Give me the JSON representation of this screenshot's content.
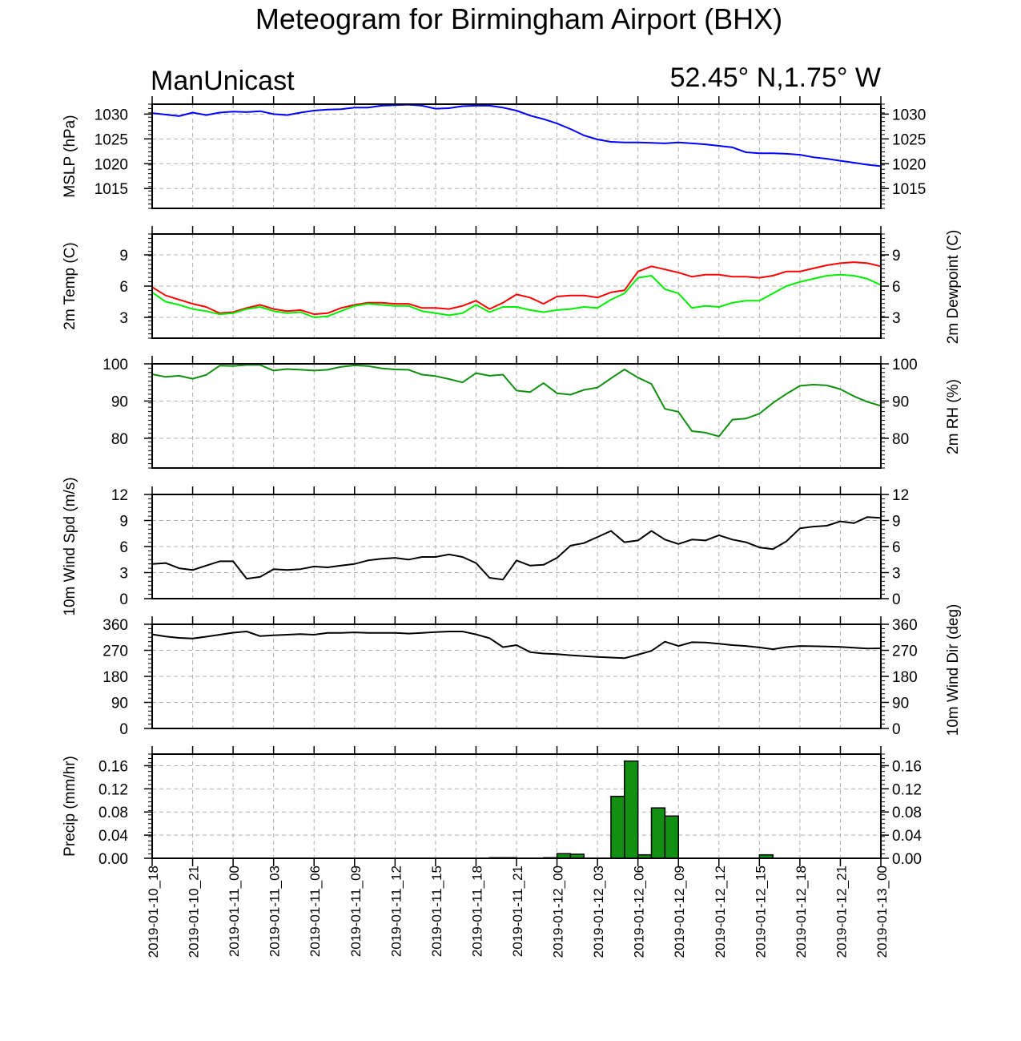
{
  "title": "Meteogram for Birmingham Airport (BHX)",
  "subtitle_left": "ManUnicast",
  "subtitle_right": "52.45° N,1.75° W",
  "colors": {
    "mslp": "#0000ff",
    "temp": "#ff0000",
    "dewpoint": "#00ee00",
    "rh": "#109010",
    "wind": "#000000",
    "precip_fill": "#119011"
  },
  "chart_data": [
    {
      "type": "line",
      "ylabel": "MSLP (hPa)",
      "ylim": [
        1011,
        1032
      ],
      "yticks": [
        1015,
        1020,
        1025,
        1030
      ],
      "x": [
        0,
        1,
        2,
        3,
        4,
        5,
        6,
        7,
        8,
        9,
        10,
        11,
        12,
        13,
        14,
        15,
        16,
        17,
        18,
        19,
        20,
        21,
        22,
        23,
        24,
        25,
        26,
        27,
        28,
        29,
        30,
        31,
        32,
        33,
        34,
        35,
        36,
        37,
        38,
        39,
        40,
        41,
        42,
        43,
        44,
        45,
        46,
        47,
        48,
        49,
        50,
        51,
        52,
        53,
        54
      ],
      "series": [
        {
          "values": [
            1030.2,
            1029.9,
            1029.6,
            1030.3,
            1029.8,
            1030.3,
            1030.5,
            1030.4,
            1030.6,
            1030,
            1029.8,
            1030.3,
            1030.7,
            1030.9,
            1031,
            1031.3,
            1031.3,
            1031.7,
            1031.8,
            1031.9,
            1031.7,
            1031.1,
            1031.2,
            1031.6,
            1031.7,
            1031.7,
            1031.3,
            1030.7,
            1029.7,
            1029,
            1028.1,
            1027,
            1025.7,
            1024.9,
            1024.4,
            1024.3,
            1024.3,
            1024.2,
            1024.1,
            1024.3,
            1024.1,
            1023.9,
            1023.6,
            1023.3,
            1022.3,
            1022.1,
            1022.1,
            1022,
            1021.8,
            1021.3,
            1021,
            1020.6,
            1020.2,
            1019.8,
            1019.5
          ]
        }
      ]
    },
    {
      "type": "line",
      "ylabel": "2m Temp (C)",
      "ylabel_right": "2m Dewpoint (C)",
      "ylim": [
        1,
        11
      ],
      "yticks": [
        3,
        6,
        9
      ],
      "x": [
        0,
        1,
        2,
        3,
        4,
        5,
        6,
        7,
        8,
        9,
        10,
        11,
        12,
        13,
        14,
        15,
        16,
        17,
        18,
        19,
        20,
        21,
        22,
        23,
        24,
        25,
        26,
        27,
        28,
        29,
        30,
        31,
        32,
        33,
        34,
        35,
        36,
        37,
        38,
        39,
        40,
        41,
        42,
        43,
        44,
        45,
        46,
        47,
        48,
        49,
        50,
        51,
        52,
        53,
        54
      ],
      "series": [
        {
          "values": [
            5.9,
            5.1,
            4.7,
            4.3,
            4,
            3.4,
            3.5,
            3.9,
            4.2,
            3.8,
            3.6,
            3.7,
            3.3,
            3.4,
            3.9,
            4.2,
            4.4,
            4.4,
            4.3,
            4.3,
            3.9,
            3.9,
            3.8,
            4.1,
            4.6,
            3.8,
            4.4,
            5.2,
            4.9,
            4.3,
            5,
            5.1,
            5.1,
            4.9,
            5.4,
            5.6,
            7.4,
            7.9,
            7.6,
            7.3,
            6.9,
            7.1,
            7.1,
            6.9,
            6.9,
            6.8,
            7,
            7.4,
            7.4,
            7.7,
            8,
            8.2,
            8.3,
            8.2,
            7.9
          ]
        },
        {
          "values": [
            5.4,
            4.5,
            4.2,
            3.8,
            3.6,
            3.3,
            3.4,
            3.8,
            4,
            3.6,
            3.4,
            3.5,
            3,
            3.1,
            3.6,
            4.1,
            4.3,
            4.2,
            4.1,
            4.1,
            3.6,
            3.4,
            3.2,
            3.4,
            4.2,
            3.5,
            4,
            4,
            3.7,
            3.5,
            3.7,
            3.8,
            4,
            3.9,
            4.7,
            5.3,
            6.8,
            7,
            5.7,
            5.3,
            3.9,
            4.1,
            4,
            4.4,
            4.6,
            4.6,
            5.3,
            6,
            6.4,
            6.7,
            7,
            7.1,
            7,
            6.7,
            6.1
          ]
        }
      ]
    },
    {
      "type": "line",
      "ylabel_right": "2m RH (%)",
      "ylim": [
        72,
        100
      ],
      "yticks": [
        80,
        90,
        100
      ],
      "x": [
        0,
        1,
        2,
        3,
        4,
        5,
        6,
        7,
        8,
        9,
        10,
        11,
        12,
        13,
        14,
        15,
        16,
        17,
        18,
        19,
        20,
        21,
        22,
        23,
        24,
        25,
        26,
        27,
        28,
        29,
        30,
        31,
        32,
        33,
        34,
        35,
        36,
        37,
        38,
        39,
        40,
        41,
        42,
        43,
        44,
        45,
        46,
        47,
        48,
        49,
        50,
        51,
        52,
        53,
        54
      ],
      "series": [
        {
          "values": [
            97.2,
            96.5,
            96.8,
            96,
            97,
            99.5,
            99.4,
            99.7,
            99.7,
            98.2,
            98.6,
            98.4,
            98.2,
            98.4,
            99.2,
            99.6,
            99.4,
            98.8,
            98.5,
            98.4,
            97.1,
            96.7,
            95.9,
            95,
            97.5,
            96.8,
            97.1,
            92.8,
            92.4,
            94.8,
            92.1,
            91.7,
            93,
            93.6,
            96.1,
            98.5,
            96.3,
            94.6,
            87.9,
            87.1,
            81.9,
            81.5,
            80.5,
            85,
            85.3,
            86.6,
            89.5,
            91.9,
            94.1,
            94.4,
            94.2,
            93.2,
            91.3,
            89.8,
            88.7
          ]
        }
      ]
    },
    {
      "type": "line",
      "ylabel": "10m Wind Spd (m/s)",
      "ylim": [
        0,
        12
      ],
      "yticks": [
        0,
        3,
        6,
        9,
        12
      ],
      "x": [
        0,
        1,
        2,
        3,
        4,
        5,
        6,
        7,
        8,
        9,
        10,
        11,
        12,
        13,
        14,
        15,
        16,
        17,
        18,
        19,
        20,
        21,
        22,
        23,
        24,
        25,
        26,
        27,
        28,
        29,
        30,
        31,
        32,
        33,
        34,
        35,
        36,
        37,
        38,
        39,
        40,
        41,
        42,
        43,
        44,
        45,
        46,
        47,
        48,
        49,
        50,
        51,
        52,
        53,
        54
      ],
      "series": [
        {
          "values": [
            4,
            4.1,
            3.5,
            3.3,
            3.8,
            4.3,
            4.3,
            2.3,
            2.5,
            3.4,
            3.3,
            3.4,
            3.7,
            3.6,
            3.8,
            4,
            4.4,
            4.6,
            4.7,
            4.5,
            4.8,
            4.8,
            5.1,
            4.8,
            4.1,
            2.4,
            2.2,
            4.4,
            3.8,
            3.9,
            4.7,
            6.1,
            6.4,
            7.1,
            7.8,
            6.5,
            6.7,
            7.8,
            6.8,
            6.3,
            6.8,
            6.7,
            7.3,
            6.8,
            6.5,
            5.9,
            5.7,
            6.6,
            8.1,
            8.3,
            8.4,
            8.9,
            8.7,
            9.4,
            9.3
          ]
        }
      ]
    },
    {
      "type": "line",
      "ylabel_right": "10m Wind Dir (deg)",
      "ylim": [
        0,
        360
      ],
      "yticks": [
        0,
        90,
        180,
        270,
        360
      ],
      "x": [
        0,
        1,
        2,
        3,
        4,
        5,
        6,
        7,
        8,
        9,
        10,
        11,
        12,
        13,
        14,
        15,
        16,
        17,
        18,
        19,
        20,
        21,
        22,
        23,
        24,
        25,
        26,
        27,
        28,
        29,
        30,
        31,
        32,
        33,
        34,
        35,
        36,
        37,
        38,
        39,
        40,
        41,
        42,
        43,
        44,
        45,
        46,
        47,
        48,
        49,
        50,
        51,
        52,
        53,
        54
      ],
      "series": [
        {
          "values": [
            325,
            318,
            313,
            311,
            317,
            324,
            331,
            335,
            319,
            322,
            324,
            326,
            324,
            330,
            330,
            332,
            330,
            330,
            330,
            328,
            330,
            333,
            335,
            335,
            325,
            312,
            281,
            288,
            264,
            259,
            257,
            253,
            250,
            247,
            245,
            243,
            255,
            268,
            300,
            285,
            298,
            297,
            293,
            288,
            285,
            280,
            274,
            281,
            285,
            284,
            283,
            282,
            279,
            276,
            277
          ]
        }
      ]
    },
    {
      "type": "bar",
      "ylabel": "Precip (mm/hr)",
      "ylim": [
        0,
        0.18
      ],
      "yticks": [
        "0.00",
        "0.04",
        "0.08",
        "0.12",
        "0.16"
      ],
      "x": [
        26,
        27,
        30,
        31,
        32,
        35,
        36,
        37,
        38,
        39,
        46
      ],
      "values": [
        0.001,
        0.001,
        0.001,
        0.008,
        0.007,
        0.107,
        0.168,
        0.006,
        0.087,
        0.073,
        0.006
      ]
    }
  ],
  "x_axis": {
    "labels": [
      "2019-01-10_18",
      "2019-01-10_21",
      "2019-01-11_00",
      "2019-01-11_03",
      "2019-01-11_06",
      "2019-01-11_09",
      "2019-01-11_12",
      "2019-01-11_15",
      "2019-01-11_18",
      "2019-01-11_21",
      "2019-01-12_00",
      "2019-01-12_03",
      "2019-01-12_06",
      "2019-01-12_09",
      "2019-01-12_12",
      "2019-01-12_15",
      "2019-01-12_18",
      "2019-01-12_21",
      "2019-01-13_00"
    ]
  }
}
